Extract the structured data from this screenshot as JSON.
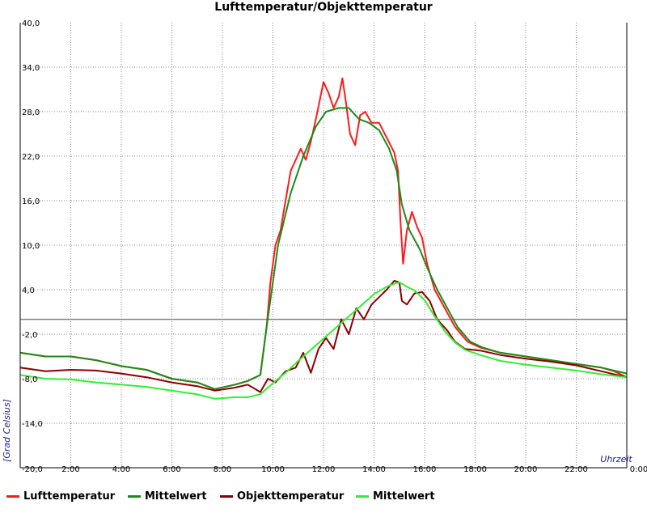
{
  "chart_data": {
    "type": "line",
    "title": "Lufttemperatur/Objekttemperatur",
    "xlabel": "Uhrzeit",
    "ylabel": "[Grad Celsius]",
    "xlim": [
      0,
      24
    ],
    "ylim": [
      -20,
      40
    ],
    "y_ticks": [
      "-20,0",
      "-14,0",
      "-8,0",
      "-2,0",
      "4,0",
      "10,0",
      "16,0",
      "22,0",
      "28,0",
      "34,0",
      "40,0"
    ],
    "x_ticks": [
      "2:00",
      "4:00",
      "6:00",
      "8:00",
      "10:00",
      "12:00",
      "14:00",
      "16:00",
      "18:00",
      "20:00",
      "22:00",
      "0:00"
    ],
    "grid": true,
    "legend_position": "bottom",
    "series": [
      {
        "name": "Lufttemperatur",
        "color": "#ff1a1a",
        "points": [
          [
            0,
            -4.5
          ],
          [
            1,
            -5.0
          ],
          [
            2,
            -5.0
          ],
          [
            3,
            -5.5
          ],
          [
            4,
            -6.3
          ],
          [
            5,
            -6.8
          ],
          [
            6,
            -8.0
          ],
          [
            7,
            -8.5
          ],
          [
            7.7,
            -9.4
          ],
          [
            8.5,
            -8.8
          ],
          [
            9,
            -8.3
          ],
          [
            9.5,
            -7.5
          ],
          [
            9.75,
            -1.0
          ],
          [
            9.9,
            5.0
          ],
          [
            10.1,
            10.0
          ],
          [
            10.3,
            12.0
          ],
          [
            10.5,
            16.0
          ],
          [
            10.7,
            20.0
          ],
          [
            10.9,
            21.5
          ],
          [
            11.1,
            23.0
          ],
          [
            11.3,
            21.5
          ],
          [
            11.5,
            24.0
          ],
          [
            11.7,
            27.0
          ],
          [
            11.85,
            29.5
          ],
          [
            12.0,
            32.0
          ],
          [
            12.2,
            30.5
          ],
          [
            12.4,
            28.5
          ],
          [
            12.6,
            30.0
          ],
          [
            12.75,
            32.5
          ],
          [
            12.9,
            29.0
          ],
          [
            13.05,
            25.0
          ],
          [
            13.25,
            23.5
          ],
          [
            13.45,
            27.5
          ],
          [
            13.65,
            28.0
          ],
          [
            13.9,
            26.5
          ],
          [
            14.2,
            26.5
          ],
          [
            14.5,
            24.5
          ],
          [
            14.8,
            22.5
          ],
          [
            14.95,
            20.0
          ],
          [
            15.05,
            13.0
          ],
          [
            15.15,
            7.5
          ],
          [
            15.3,
            12.0
          ],
          [
            15.5,
            14.5
          ],
          [
            15.7,
            12.5
          ],
          [
            15.9,
            11.0
          ],
          [
            16.1,
            7.5
          ],
          [
            16.4,
            4.0
          ],
          [
            16.8,
            1.5
          ],
          [
            17.2,
            -1.0
          ],
          [
            17.7,
            -3.0
          ],
          [
            18.2,
            -3.8
          ],
          [
            19.0,
            -4.5
          ],
          [
            20.0,
            -5.0
          ],
          [
            21.0,
            -5.5
          ],
          [
            22.0,
            -6.0
          ],
          [
            23.0,
            -6.5
          ],
          [
            23.5,
            -7.0
          ],
          [
            24.0,
            -7.8
          ]
        ]
      },
      {
        "name": "Mittelwert",
        "color": "#1a8c1a",
        "points": [
          [
            0,
            -4.5
          ],
          [
            1,
            -5.0
          ],
          [
            2,
            -5.0
          ],
          [
            3,
            -5.5
          ],
          [
            4,
            -6.3
          ],
          [
            5,
            -6.8
          ],
          [
            6,
            -8.0
          ],
          [
            7,
            -8.5
          ],
          [
            7.7,
            -9.4
          ],
          [
            8.5,
            -8.8
          ],
          [
            9,
            -8.3
          ],
          [
            9.5,
            -7.5
          ],
          [
            9.75,
            -1.0
          ],
          [
            10.2,
            10.0
          ],
          [
            10.7,
            17.0
          ],
          [
            11.2,
            22.0
          ],
          [
            11.7,
            26.0
          ],
          [
            12.1,
            28.0
          ],
          [
            12.6,
            28.5
          ],
          [
            13.0,
            28.5
          ],
          [
            13.4,
            27.0
          ],
          [
            13.8,
            26.5
          ],
          [
            14.2,
            25.5
          ],
          [
            14.6,
            23.0
          ],
          [
            14.9,
            20.0
          ],
          [
            15.1,
            15.5
          ],
          [
            15.4,
            12.0
          ],
          [
            15.8,
            9.5
          ],
          [
            16.1,
            7.0
          ],
          [
            16.5,
            4.0
          ],
          [
            16.9,
            1.5
          ],
          [
            17.3,
            -1.0
          ],
          [
            17.8,
            -3.0
          ],
          [
            18.3,
            -3.8
          ],
          [
            19.0,
            -4.5
          ],
          [
            20.0,
            -5.0
          ],
          [
            21.0,
            -5.5
          ],
          [
            22.0,
            -6.0
          ],
          [
            23.0,
            -6.5
          ],
          [
            24.0,
            -7.3
          ]
        ]
      },
      {
        "name": "Objekttemperatur",
        "color": "#8b0000",
        "points": [
          [
            0,
            -6.5
          ],
          [
            1,
            -7.0
          ],
          [
            2,
            -6.8
          ],
          [
            3,
            -6.9
          ],
          [
            4,
            -7.3
          ],
          [
            5,
            -7.8
          ],
          [
            6,
            -8.5
          ],
          [
            7,
            -9.0
          ],
          [
            7.7,
            -9.6
          ],
          [
            8.5,
            -9.2
          ],
          [
            9,
            -8.8
          ],
          [
            9.5,
            -9.8
          ],
          [
            9.8,
            -8.0
          ],
          [
            10.1,
            -8.5
          ],
          [
            10.5,
            -7.0
          ],
          [
            10.9,
            -6.5
          ],
          [
            11.2,
            -4.5
          ],
          [
            11.5,
            -7.2
          ],
          [
            11.8,
            -4.0
          ],
          [
            12.1,
            -2.5
          ],
          [
            12.4,
            -4.0
          ],
          [
            12.7,
            0.0
          ],
          [
            13.0,
            -2.0
          ],
          [
            13.3,
            1.5
          ],
          [
            13.6,
            0.0
          ],
          [
            13.9,
            2.0
          ],
          [
            14.2,
            3.0
          ],
          [
            14.5,
            4.0
          ],
          [
            14.8,
            5.2
          ],
          [
            15.0,
            5.0
          ],
          [
            15.1,
            2.5
          ],
          [
            15.3,
            2.0
          ],
          [
            15.6,
            3.5
          ],
          [
            15.9,
            3.7
          ],
          [
            16.2,
            2.5
          ],
          [
            16.5,
            0.0
          ],
          [
            16.9,
            -1.5
          ],
          [
            17.2,
            -3.0
          ],
          [
            17.6,
            -4.0
          ],
          [
            18.2,
            -4.2
          ],
          [
            19.0,
            -4.8
          ],
          [
            20.0,
            -5.3
          ],
          [
            21.0,
            -5.7
          ],
          [
            22.0,
            -6.2
          ],
          [
            23.0,
            -7.0
          ],
          [
            24.0,
            -7.8
          ]
        ]
      },
      {
        "name": "Mittelwert",
        "color": "#33ee33",
        "points": [
          [
            0,
            -7.5
          ],
          [
            1,
            -8.0
          ],
          [
            2,
            -8.1
          ],
          [
            3,
            -8.5
          ],
          [
            4,
            -8.8
          ],
          [
            5,
            -9.1
          ],
          [
            6,
            -9.6
          ],
          [
            7,
            -10.1
          ],
          [
            7.7,
            -10.7
          ],
          [
            8.5,
            -10.5
          ],
          [
            9,
            -10.5
          ],
          [
            9.5,
            -10.1
          ],
          [
            10.0,
            -8.6
          ],
          [
            10.5,
            -7.2
          ],
          [
            11.0,
            -5.6
          ],
          [
            11.5,
            -4.1
          ],
          [
            12.0,
            -2.6
          ],
          [
            12.5,
            -1.1
          ],
          [
            13.0,
            0.4
          ],
          [
            13.5,
            1.9
          ],
          [
            14.0,
            3.4
          ],
          [
            14.5,
            4.4
          ],
          [
            14.8,
            4.8
          ],
          [
            15.0,
            5.0
          ],
          [
            15.3,
            4.4
          ],
          [
            15.6,
            3.9
          ],
          [
            16.0,
            2.6
          ],
          [
            16.4,
            0.4
          ],
          [
            16.8,
            -1.6
          ],
          [
            17.2,
            -3.1
          ],
          [
            17.6,
            -4.1
          ],
          [
            18.2,
            -4.8
          ],
          [
            19.0,
            -5.6
          ],
          [
            20.0,
            -6.1
          ],
          [
            21.0,
            -6.5
          ],
          [
            22.0,
            -6.9
          ],
          [
            23.0,
            -7.4
          ],
          [
            24.0,
            -7.8
          ]
        ]
      }
    ]
  },
  "legend": [
    {
      "label": "Lufttemperatur",
      "color": "#ff1a1a"
    },
    {
      "label": "Mittelwert",
      "color": "#1a8c1a"
    },
    {
      "label": "Objekttemperatur",
      "color": "#8b0000"
    },
    {
      "label": "Mittelwert",
      "color": "#33ee33"
    }
  ]
}
